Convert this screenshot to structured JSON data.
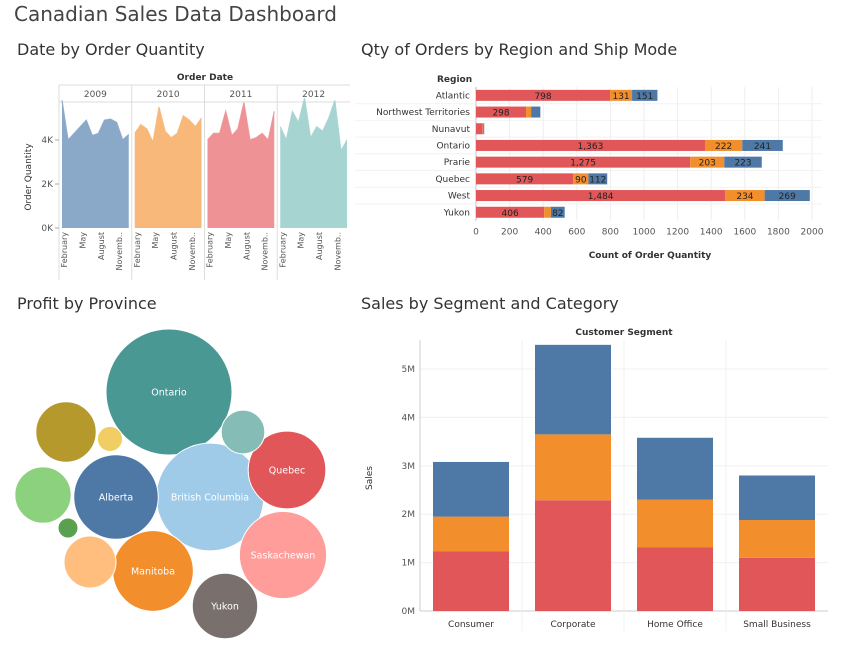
{
  "dashboard_title": "Canadian Sales Data Dashboard",
  "colors": {
    "red": "#e15759",
    "orange": "#f28e2b",
    "blue": "#4e79a7",
    "y2009": "#8aa8c8",
    "y2010": "#f7b87a",
    "y2011": "#ee9295",
    "y2012": "#a5d4d1"
  },
  "chart_data": [
    {
      "type": "area",
      "title": "Date by Order Quantity",
      "column_header": "Order Date",
      "years": [
        "2009",
        "2010",
        "2011",
        "2012"
      ],
      "ylabel": "Order Quantity",
      "yticks": [
        "0K",
        "2K",
        "4K"
      ],
      "ylim": [
        0,
        6000
      ],
      "x_tick_labels": [
        "February",
        "May",
        "August",
        "Novemb.."
      ],
      "series": [
        {
          "values": [
            5800,
            4000,
            4300,
            4600,
            4900,
            4200,
            4300,
            4900,
            4950,
            4800,
            4000,
            4250
          ]
        },
        {
          "values": [
            4300,
            4700,
            4500,
            3900,
            5500,
            4400,
            4100,
            4300,
            5100,
            4900,
            4600,
            5000
          ]
        },
        {
          "values": [
            4000,
            4300,
            4300,
            5300,
            4200,
            4500,
            5700,
            4000,
            4100,
            4300,
            4000,
            5300
          ]
        },
        {
          "values": [
            4600,
            4000,
            5300,
            4800,
            5900,
            4100,
            4600,
            4400,
            5000,
            5800,
            3500,
            4000
          ]
        }
      ]
    },
    {
      "type": "bar",
      "orientation": "horizontal",
      "stacked": true,
      "title": "Qty of Orders by Region and Ship Mode",
      "row_header": "Region",
      "categories": [
        "Atlantic",
        "Northwest Territories",
        "Nunavut",
        "Ontario",
        "Prarie",
        "Quebec",
        "West",
        "Yukon"
      ],
      "series": [
        {
          "values": [
            798,
            298,
            40,
            1363,
            1275,
            579,
            1484,
            406
          ],
          "labels": [
            "798",
            "298",
            "",
            "1,363",
            "1,275",
            "579",
            "1,484",
            "406"
          ]
        },
        {
          "values": [
            131,
            30,
            4,
            222,
            203,
            90,
            234,
            40
          ],
          "labels": [
            "131",
            "",
            "",
            "222",
            "203",
            "90",
            "234",
            ""
          ]
        },
        {
          "values": [
            151,
            55,
            5,
            241,
            223,
            112,
            269,
            82
          ],
          "labels": [
            "151",
            "",
            "",
            "241",
            "223",
            "112",
            "269",
            "82"
          ]
        }
      ],
      "xticks": [
        "0",
        "200",
        "400",
        "600",
        "800",
        "1000",
        "1200",
        "1400",
        "1600",
        "1800",
        "2000"
      ],
      "xlim": [
        0,
        2000
      ],
      "xlabel": "Count of Order Quantity"
    },
    {
      "type": "bubble",
      "title": "Profit by Province",
      "bubbles": [
        {
          "label": "Ontario",
          "value": 100,
          "color": "#499894"
        },
        {
          "label": "British Columbia",
          "value": 73,
          "color": "#a0cbe8"
        },
        {
          "label": "Alberta",
          "value": 45,
          "color": "#4e79a7"
        },
        {
          "label": "Saskachewan",
          "value": 48,
          "color": "#ff9d9a"
        },
        {
          "label": "Manitoba",
          "value": 41,
          "color": "#f28e2b"
        },
        {
          "label": "Quebec",
          "value": 38,
          "color": "#e15759"
        },
        {
          "label": "Yukon",
          "value": 27,
          "color": "#79706e"
        },
        {
          "label": "",
          "value": 23,
          "color": "#b6992d"
        },
        {
          "label": "",
          "value": 20,
          "color": "#8cd17d"
        },
        {
          "label": "",
          "value": 17,
          "color": "#ffbe7d"
        },
        {
          "label": "",
          "value": 12,
          "color": "#86bcb6"
        },
        {
          "label": "",
          "value": 4,
          "color": "#f1ce63"
        },
        {
          "label": "",
          "value": 2.5,
          "color": "#59a14f"
        }
      ]
    },
    {
      "type": "bar",
      "stacked": true,
      "title": "Sales by Segment and Category",
      "column_header": "Customer Segment",
      "categories": [
        "Consumer",
        "Corporate",
        "Home Office",
        "Small Business"
      ],
      "series": [
        {
          "values": [
            1.23,
            2.29,
            1.32,
            1.1
          ]
        },
        {
          "values": [
            0.72,
            1.36,
            0.98,
            0.78
          ]
        },
        {
          "values": [
            1.13,
            1.85,
            1.28,
            0.92
          ]
        }
      ],
      "ylabel": "Sales",
      "yticks": [
        "0M",
        "1M",
        "2M",
        "3M",
        "4M",
        "5M"
      ],
      "ylim": [
        0,
        5.6
      ]
    }
  ]
}
